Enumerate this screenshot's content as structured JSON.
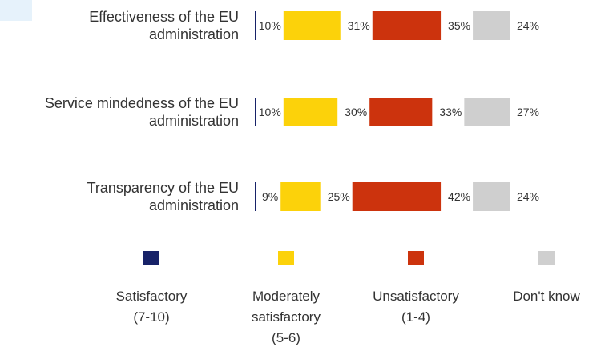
{
  "chart_data": {
    "type": "bar",
    "stacked": true,
    "orientation": "horizontal",
    "categories": [
      [
        "Effectiveness of the EU",
        "administration"
      ],
      [
        "Service mindedness of the EU",
        "administration"
      ],
      [
        "Transparency of the EU",
        "administration"
      ]
    ],
    "series": [
      {
        "name": "Satisfactory (7-10)",
        "legend_lines": [
          "Satisfactory",
          "(7-10)"
        ],
        "color": "#172268",
        "values": [
          10,
          10,
          9
        ]
      },
      {
        "name": "Moderately satisfactory (5-6)",
        "legend_lines": [
          "Moderately",
          "satisfactory",
          "(5-6)"
        ],
        "color": "#fcd20a",
        "values": [
          31,
          30,
          25
        ]
      },
      {
        "name": "Unsatisfactory (1-4)",
        "legend_lines": [
          "Unsatisfactory",
          "(1-4)"
        ],
        "color": "#cc330d",
        "values": [
          35,
          33,
          42
        ]
      },
      {
        "name": "Don't know",
        "legend_lines": [
          "Don't know"
        ],
        "color": "#cfcfcf",
        "values": [
          24,
          27,
          24
        ]
      }
    ],
    "value_suffix": "%",
    "xlim": [
      0,
      100
    ],
    "grid": false,
    "legend_position": "bottom"
  }
}
